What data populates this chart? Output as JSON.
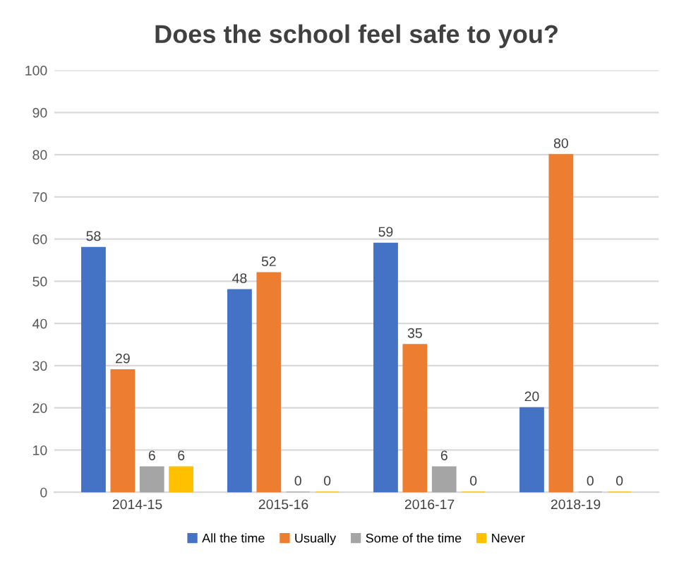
{
  "chart_data": {
    "type": "bar",
    "title": "Does the school feel safe to you?",
    "categories": [
      "2014-15",
      "2015-16",
      "2016-17",
      "2018-19"
    ],
    "series": [
      {
        "name": "All the time",
        "color": "#4472c4",
        "values": [
          58,
          48,
          59,
          20
        ]
      },
      {
        "name": "Usually",
        "color": "#ed7d31",
        "values": [
          29,
          52,
          35,
          80
        ]
      },
      {
        "name": "Some of the time",
        "color": "#a5a5a5",
        "values": [
          6,
          0,
          6,
          0
        ]
      },
      {
        "name": "Never",
        "color": "#ffc000",
        "values": [
          6,
          0,
          0,
          0
        ]
      }
    ],
    "ylim": [
      0,
      100
    ],
    "yticks": [
      0,
      10,
      20,
      30,
      40,
      50,
      60,
      70,
      80,
      90,
      100
    ],
    "grid": "y",
    "legend": "bottom",
    "data_labels": true
  }
}
